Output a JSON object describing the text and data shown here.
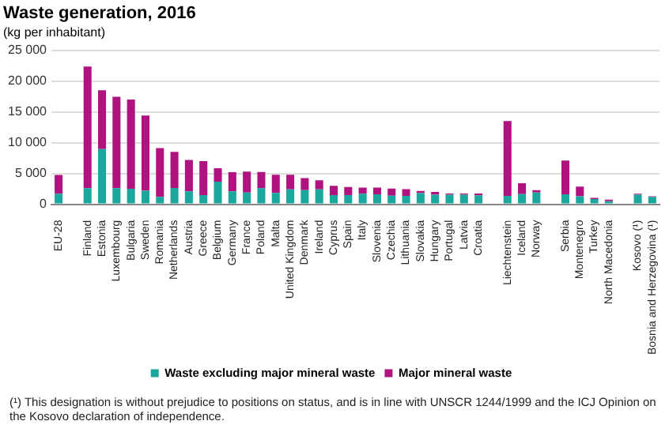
{
  "chart_data": {
    "type": "bar",
    "title": "Waste generation, 2016",
    "subtitle": "(kg per inhabitant)",
    "categories": [
      "EU-28",
      null,
      "Finland",
      "Estonia",
      "Luxembourg",
      "Bulgaria",
      "Sweden",
      "Romania",
      "Netherlands",
      "Austria",
      "Greece",
      "Belgium",
      "Germany",
      "France",
      "Poland",
      "Malta",
      "United Kingdom",
      "Denmark",
      "Ireland",
      "Cyprus",
      "Spain",
      "Italy",
      "Slovenia",
      "Czechia",
      "Lithuania",
      "Slovakia",
      "Hungary",
      "Portugal",
      "Latvia",
      "Croatia",
      null,
      "Liechtenstein",
      "Iceland",
      "Norway",
      null,
      "Serbia",
      "Montenegro",
      "Turkey",
      "North Macedonia",
      null,
      "Kosovo (¹)",
      "Bosnia and Herzegovina (¹)"
    ],
    "stacked": true,
    "series": [
      {
        "name": "Waste excluding major mineral waste",
        "color": "#1aa89e",
        "values": [
          1700,
          null,
          2600,
          8950,
          2600,
          2500,
          2200,
          1200,
          2650,
          2100,
          1500,
          3650,
          2100,
          1900,
          2600,
          1850,
          2400,
          2300,
          2400,
          1500,
          1500,
          1700,
          1600,
          1400,
          1350,
          1800,
          1550,
          1550,
          1550,
          1450,
          null,
          1350,
          1650,
          1900,
          null,
          1600,
          1300,
          850,
          500,
          null,
          1550,
          1200
        ]
      },
      {
        "name": "Major mineral waste",
        "color": "#b0137f",
        "values": [
          3050,
          null,
          19750,
          9550,
          14850,
          14500,
          12200,
          7900,
          5850,
          5100,
          5500,
          2200,
          3100,
          3400,
          2650,
          2950,
          2400,
          1950,
          1500,
          1500,
          1300,
          1000,
          1100,
          1150,
          1100,
          350,
          450,
          200,
          200,
          300,
          null,
          12150,
          1750,
          400,
          null,
          5500,
          1550,
          200,
          250,
          null,
          150,
          100
        ]
      }
    ],
    "ylim": [
      0,
      25000
    ],
    "yticks": [
      0,
      {
        "value": 5000,
        "label": "5 000"
      },
      {
        "value": 10000,
        "label": "10 000"
      },
      {
        "value": 15000,
        "label": "15 000"
      },
      {
        "value": 20000,
        "label": "20 000"
      },
      {
        "value": 25000,
        "label": "25 000"
      }
    ],
    "grid": "y",
    "legend": "bottom",
    "annotations": [
      "(¹) This designation is without prejudice to positions on status, and is in line with UNSCR 1244/1999 and the ICJ Opinion on the Kosovo declaration of independence."
    ]
  }
}
